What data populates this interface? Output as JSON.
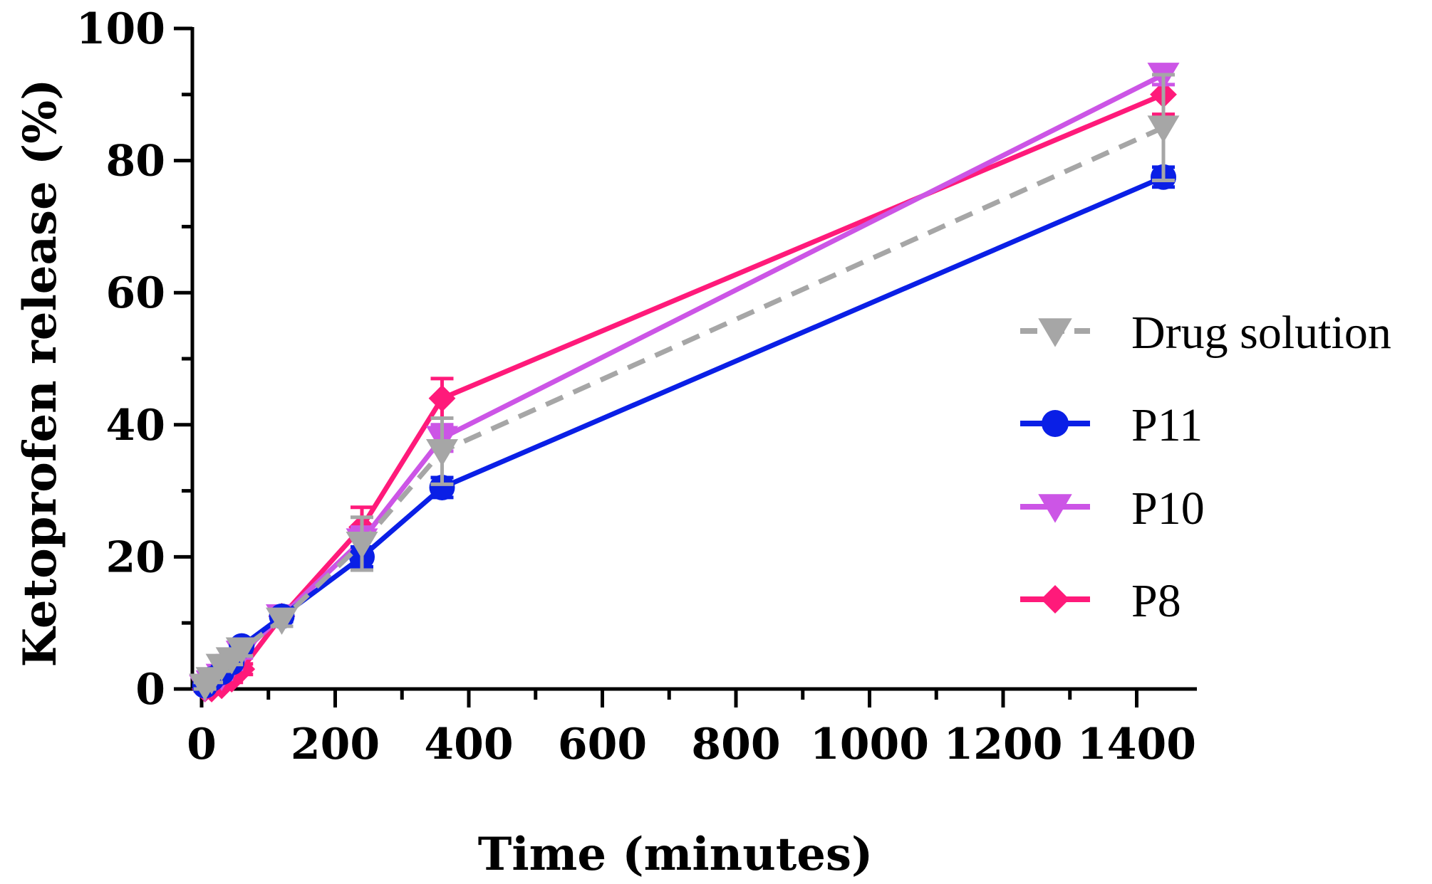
{
  "chart_data": {
    "type": "line",
    "title": "",
    "xlabel": "Time (minutes)",
    "ylabel": "Ketoprofen release (%)",
    "xlim": [
      0,
      1440
    ],
    "ylim": [
      0,
      100
    ],
    "x_ticks": [
      0,
      200,
      400,
      600,
      800,
      1000,
      1200,
      1400
    ],
    "y_ticks": [
      0,
      20,
      40,
      60,
      80,
      100
    ],
    "x_tick_labels": [
      "0",
      "200",
      "400",
      "600",
      "800",
      "1000",
      "1200",
      "1400"
    ],
    "y_tick_labels": [
      "0",
      "20",
      "40",
      "60",
      "80",
      "100"
    ],
    "legend_position": "right",
    "grid": false,
    "series": [
      {
        "name": "Drug solution",
        "color": "#a6a6a6",
        "marker": "triangle-down",
        "dashed": true,
        "x": [
          5,
          15,
          30,
          45,
          60,
          120,
          240,
          360,
          1440
        ],
        "y": [
          0.5,
          1.5,
          3.5,
          4.5,
          6,
          10.5,
          22,
          36,
          85
        ],
        "err": [
          0.5,
          0.5,
          0.8,
          0.8,
          1,
          1,
          4,
          5,
          8
        ]
      },
      {
        "name": "P11",
        "color": "#0a1fe6",
        "marker": "circle",
        "dashed": false,
        "x": [
          5,
          15,
          30,
          45,
          60,
          120,
          240,
          360,
          1440
        ],
        "y": [
          0.5,
          1.5,
          2.5,
          4,
          6.5,
          11,
          20,
          30.5,
          77.5
        ],
        "err": [
          0.3,
          0.3,
          0.5,
          0.5,
          0.8,
          0.8,
          1.5,
          1.5,
          1.5
        ]
      },
      {
        "name": "P10",
        "color": "#cc55e6",
        "marker": "triangle-down",
        "dashed": false,
        "x": [
          5,
          15,
          30,
          45,
          60,
          120,
          240,
          360,
          1440
        ],
        "y": [
          0.3,
          1,
          2,
          3.5,
          5.5,
          11,
          22.5,
          38,
          93
        ],
        "err": [
          0.3,
          0.3,
          0.5,
          0.5,
          0.8,
          0.8,
          2,
          2,
          1.5
        ]
      },
      {
        "name": "P8",
        "color": "#ff1a7a",
        "marker": "diamond",
        "dashed": false,
        "x": [
          5,
          15,
          30,
          45,
          60,
          120,
          240,
          360,
          1440
        ],
        "y": [
          0,
          0,
          0.5,
          1.5,
          3,
          11,
          24.5,
          44,
          90
        ],
        "err": [
          0.3,
          0.3,
          0.5,
          0.5,
          0.8,
          0.8,
          3,
          3,
          3
        ]
      }
    ]
  }
}
